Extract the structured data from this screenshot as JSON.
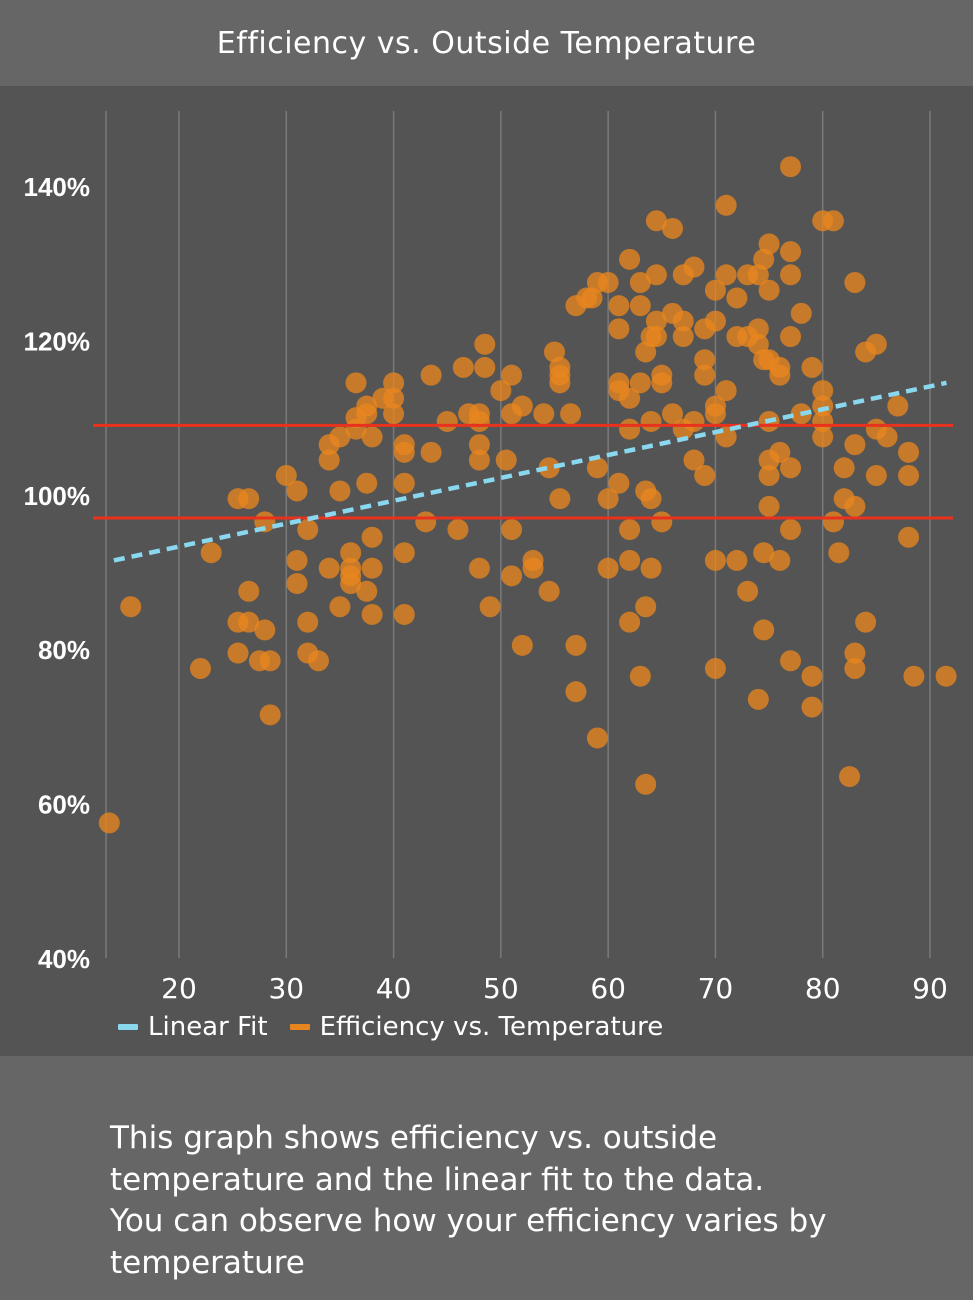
{
  "header": {
    "title": "Efficiency vs. Outside Temperature"
  },
  "footer": {
    "lines": [
      "This graph shows efficiency vs. outside",
      "temperature and the linear fit to the data.",
      "You can observe how your efficiency varies by",
      "temperature"
    ]
  },
  "chart_data": {
    "type": "scatter",
    "title": "",
    "xlabel": "",
    "ylabel": "",
    "xlim": [
      13,
      92
    ],
    "ylim": [
      40,
      150
    ],
    "x_ticks": [
      20,
      30,
      40,
      50,
      60,
      70,
      80,
      90
    ],
    "y_ticks": [
      40,
      60,
      80,
      100,
      120,
      140
    ],
    "y_tick_labels": [
      "40%",
      "60%",
      "80%",
      "100%",
      "120%",
      "140%"
    ],
    "grid": "vertical",
    "legend": {
      "placement": "bottom-left",
      "entries": [
        "Linear Fit",
        "Efficiency vs. Temperature"
      ]
    },
    "colors": {
      "points": "#e8851e",
      "fit": "#8ad8f0",
      "band": "#e8321e",
      "grid": "#7a7a7a"
    },
    "series": [
      {
        "name": "Efficiency vs. Temperature",
        "points": [
          [
            13.5,
            57.5
          ],
          [
            15.5,
            85.5
          ],
          [
            22,
            77.5
          ],
          [
            23,
            92.5
          ],
          [
            25.5,
            99.5
          ],
          [
            26.5,
            99.5
          ],
          [
            25.5,
            83.5
          ],
          [
            26.5,
            83.5
          ],
          [
            25.5,
            79.5
          ],
          [
            26.5,
            87.5
          ],
          [
            27.5,
            78.5
          ],
          [
            28.5,
            78.5
          ],
          [
            28,
            82.5
          ],
          [
            28.5,
            71.5
          ],
          [
            28,
            96.5
          ],
          [
            30,
            102.5
          ],
          [
            31,
            100.5
          ],
          [
            31,
            91.5
          ],
          [
            31,
            88.5
          ],
          [
            32,
            95.5
          ],
          [
            32,
            83.5
          ],
          [
            32,
            79.5
          ],
          [
            33,
            78.5
          ],
          [
            34,
            104.5
          ],
          [
            34,
            106.5
          ],
          [
            34,
            90.5
          ],
          [
            35,
            107.5
          ],
          [
            35,
            100.5
          ],
          [
            35,
            85.5
          ],
          [
            36,
            92.5
          ],
          [
            36,
            90.5
          ],
          [
            36,
            89.5
          ],
          [
            36,
            88.5
          ],
          [
            36.5,
            114.5
          ],
          [
            36.5,
            110
          ],
          [
            36.5,
            108.5
          ],
          [
            37.5,
            111.5
          ],
          [
            37.5,
            110.5
          ],
          [
            37.5,
            101.5
          ],
          [
            37.5,
            87.5
          ],
          [
            38,
            107.5
          ],
          [
            38,
            94.5
          ],
          [
            38,
            90.5
          ],
          [
            38,
            84.5
          ],
          [
            39,
            112.5
          ],
          [
            40,
            114.5
          ],
          [
            40,
            112.5
          ],
          [
            40,
            110.5
          ],
          [
            41,
            106.5
          ],
          [
            41,
            105.5
          ],
          [
            41,
            101.5
          ],
          [
            41,
            92.5
          ],
          [
            41,
            84.5
          ],
          [
            43,
            96.5
          ],
          [
            43.5,
            115.5
          ],
          [
            43.5,
            105.5
          ],
          [
            45,
            109.5
          ],
          [
            46,
            95.5
          ],
          [
            46.5,
            116.5
          ],
          [
            47,
            110.5
          ],
          [
            48,
            110.5
          ],
          [
            48,
            109.5
          ],
          [
            48,
            106.5
          ],
          [
            48,
            104.5
          ],
          [
            48,
            90.5
          ],
          [
            48.5,
            116.5
          ],
          [
            48.5,
            119.5
          ],
          [
            49,
            85.5
          ],
          [
            50,
            113.5
          ],
          [
            50.5,
            104.5
          ],
          [
            51,
            115.5
          ],
          [
            51,
            110.5
          ],
          [
            51,
            95.5
          ],
          [
            51,
            89.5
          ],
          [
            52,
            111.5
          ],
          [
            52,
            80.5
          ],
          [
            53,
            91.5
          ],
          [
            53,
            90.5
          ],
          [
            54,
            110.5
          ],
          [
            54.5,
            103.5
          ],
          [
            54.5,
            87.5
          ],
          [
            55,
            118.5
          ],
          [
            55.5,
            116.5
          ],
          [
            55.5,
            115.5
          ],
          [
            55.5,
            114.5
          ],
          [
            55.5,
            99.5
          ],
          [
            56.5,
            110.5
          ],
          [
            57,
            124.5
          ],
          [
            57,
            80.5
          ],
          [
            57,
            74.5
          ],
          [
            58,
            125.5
          ],
          [
            58.5,
            125.5
          ],
          [
            59,
            127.5
          ],
          [
            59,
            103.5
          ],
          [
            59,
            68.5
          ],
          [
            60,
            127.5
          ],
          [
            60,
            99.5
          ],
          [
            60,
            90.5
          ],
          [
            61,
            124.5
          ],
          [
            61,
            121.5
          ],
          [
            61,
            114.5
          ],
          [
            61,
            113.5
          ],
          [
            61,
            101.5
          ],
          [
            62,
            130.5
          ],
          [
            62,
            112.5
          ],
          [
            62,
            108.5
          ],
          [
            62,
            95.5
          ],
          [
            62,
            91.5
          ],
          [
            62,
            83.5
          ],
          [
            63,
            127.5
          ],
          [
            63,
            124.5
          ],
          [
            63,
            114.5
          ],
          [
            63,
            76.5
          ],
          [
            63.5,
            118.5
          ],
          [
            63.5,
            100.5
          ],
          [
            63.5,
            85.5
          ],
          [
            63.5,
            62.5
          ],
          [
            64,
            120.5
          ],
          [
            64,
            109.5
          ],
          [
            64,
            99.5
          ],
          [
            64,
            90.5
          ],
          [
            64.5,
            135.5
          ],
          [
            64.5,
            128.5
          ],
          [
            64.5,
            122.5
          ],
          [
            64.5,
            120.5
          ],
          [
            65,
            115.5
          ],
          [
            65,
            114.5
          ],
          [
            65,
            96.5
          ],
          [
            66,
            134.5
          ],
          [
            66,
            123.5
          ],
          [
            66,
            110.5
          ],
          [
            67,
            128.5
          ],
          [
            67,
            122.5
          ],
          [
            67,
            120.5
          ],
          [
            67,
            108.5
          ],
          [
            68,
            129.5
          ],
          [
            68,
            109.5
          ],
          [
            68,
            104.5
          ],
          [
            69,
            121.5
          ],
          [
            69,
            117.5
          ],
          [
            69,
            115.5
          ],
          [
            69,
            102.5
          ],
          [
            70,
            126.5
          ],
          [
            70,
            122.5
          ],
          [
            70,
            111.5
          ],
          [
            70,
            110.5
          ],
          [
            70,
            91.5
          ],
          [
            70,
            77.5
          ],
          [
            71,
            137.5
          ],
          [
            71,
            128.5
          ],
          [
            71,
            113.5
          ],
          [
            71,
            107.5
          ],
          [
            72,
            125.5
          ],
          [
            72,
            120.5
          ],
          [
            72,
            91.5
          ],
          [
            73,
            128.5
          ],
          [
            73,
            120.5
          ],
          [
            73,
            87.5
          ],
          [
            74,
            128.5
          ],
          [
            74,
            121.5
          ],
          [
            74,
            119.5
          ],
          [
            74,
            73.5
          ],
          [
            74.5,
            130.5
          ],
          [
            74.5,
            117.5
          ],
          [
            74.5,
            92.5
          ],
          [
            74.5,
            82.5
          ],
          [
            75,
            132.5
          ],
          [
            75,
            126.5
          ],
          [
            75,
            117.5
          ],
          [
            75,
            109.5
          ],
          [
            75,
            104.5
          ],
          [
            75,
            102.5
          ],
          [
            75,
            98.5
          ],
          [
            76,
            116.5
          ],
          [
            76,
            115.5
          ],
          [
            76,
            105.5
          ],
          [
            76,
            91.5
          ],
          [
            77,
            131.5
          ],
          [
            77,
            128.5
          ],
          [
            77,
            120.5
          ],
          [
            77,
            103.5
          ],
          [
            77,
            95.5
          ],
          [
            77,
            78.5
          ],
          [
            77,
            142.5
          ],
          [
            78,
            123.5
          ],
          [
            78,
            110.5
          ],
          [
            79,
            116.5
          ],
          [
            79,
            76.5
          ],
          [
            79,
            72.5
          ],
          [
            80,
            135.5
          ],
          [
            80,
            113.5
          ],
          [
            80,
            111.5
          ],
          [
            80,
            109.5
          ],
          [
            80,
            107.5
          ],
          [
            81,
            135.5
          ],
          [
            81,
            96.5
          ],
          [
            81.5,
            92.5
          ],
          [
            82,
            103.5
          ],
          [
            82,
            99.5
          ],
          [
            82.5,
            63.5
          ],
          [
            83,
            127.5
          ],
          [
            83,
            106.5
          ],
          [
            83,
            98.5
          ],
          [
            83,
            79.5
          ],
          [
            83,
            77.5
          ],
          [
            84,
            118.5
          ],
          [
            84,
            83.5
          ],
          [
            85,
            119.5
          ],
          [
            85,
            108.5
          ],
          [
            85,
            102.5
          ],
          [
            86,
            107.5
          ],
          [
            87,
            111.5
          ],
          [
            88,
            105.5
          ],
          [
            88,
            102.5
          ],
          [
            88,
            94.5
          ],
          [
            88.5,
            76.5
          ],
          [
            91.5,
            76.5
          ]
        ]
      }
    ],
    "fit": {
      "name": "Linear Fit",
      "x": [
        13,
        92
      ],
      "y": [
        91.5,
        114.5
      ]
    },
    "reference_lines": [
      109,
      97
    ]
  }
}
